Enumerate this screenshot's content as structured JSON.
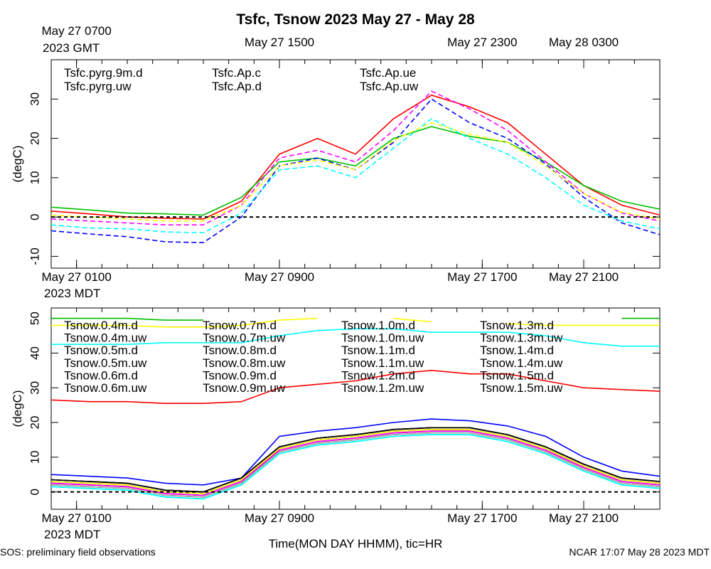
{
  "title": "Tsfc, Tsnow 2023 May 27 - May 28",
  "footer_left": "SOS: preliminary field observations",
  "footer_right": "NCAR 17:07 May 28 2023 MDT",
  "chart_data": [
    {
      "type": "line",
      "ylabel": "(degC)",
      "x": [
        0,
        1.5,
        3,
        4.5,
        6,
        7.5,
        9,
        10.5,
        12,
        13.5,
        15,
        16.5,
        18,
        19.5,
        21,
        22.5,
        24
      ],
      "xlim": [
        0,
        24
      ],
      "xticks": [
        {
          "value": 1,
          "label": "May 27 0100"
        },
        {
          "value": 9,
          "label": "May 27 0900"
        },
        {
          "value": 17,
          "label": "May 27 1700"
        },
        {
          "value": 21,
          "label": "May 27 2100"
        }
      ],
      "xtick_sublabel": "2023 MDT",
      "x2ticks": [
        {
          "value": 1,
          "label": "May 27 0700"
        },
        {
          "value": 9,
          "label": "May 27 1500"
        },
        {
          "value": 17,
          "label": "May 27 2300"
        },
        {
          "value": 21,
          "label": "May 28 0300"
        }
      ],
      "x2tick_sublabel": "2023 GMT",
      "xminorticks": [
        0,
        1,
        2,
        3,
        4,
        5,
        6,
        7,
        8,
        9,
        10,
        11,
        12,
        13,
        14,
        15,
        16,
        17,
        18,
        19,
        20,
        21,
        22,
        23,
        24
      ],
      "ylim": [
        -13,
        40
      ],
      "yticks": [
        -10,
        0,
        10,
        20,
        30
      ],
      "reference_line": 0,
      "series": [
        {
          "name": "Tsfc.pyrg.9m.d",
          "color": "#ff0000",
          "linestyle": "solid",
          "values": [
            1.5,
            0.8,
            0,
            -0.3,
            -0.5,
            4,
            16,
            20,
            16,
            25,
            31,
            28,
            24,
            16,
            8,
            3,
            0.5
          ]
        },
        {
          "name": "Tsfc.pyrg.uw",
          "color": "#00c000",
          "linestyle": "solid",
          "values": [
            2.5,
            1.8,
            1,
            0.8,
            0.5,
            5,
            14,
            15,
            13,
            20,
            23,
            20.5,
            19,
            14,
            8,
            4,
            2
          ]
        },
        {
          "name": "Tsfc.Ap.c",
          "color": "#0000ff",
          "linestyle": "dashed",
          "values": [
            -3.5,
            -4.3,
            -5,
            -6.3,
            -6.5,
            0,
            13,
            15,
            12,
            19,
            30,
            24,
            20,
            13.5,
            5,
            -1.5,
            -4.5
          ]
        },
        {
          "name": "Tsfc.Ap.d",
          "color": "#00ffff",
          "linestyle": "dashed",
          "values": [
            -2,
            -2.8,
            -3,
            -3.8,
            -4,
            1,
            12,
            13,
            10,
            17.5,
            25,
            20,
            16,
            10,
            3,
            -1,
            -3
          ]
        },
        {
          "name": "Tsfc.Ap.ue",
          "color": "#ff00ff",
          "linestyle": "dashed",
          "values": [
            -0.5,
            -1,
            -1.5,
            -2,
            -2,
            3,
            15,
            17,
            14,
            22,
            32,
            27.5,
            22,
            14,
            6,
            1,
            -1
          ]
        },
        {
          "name": "Tsfc.Ap.uw",
          "color": "#ffff00",
          "linestyle": "dashed",
          "values": [
            0.5,
            0,
            -0.5,
            -1,
            -1,
            3,
            13,
            14.5,
            12,
            19.5,
            24,
            21,
            19,
            13,
            6,
            1.2,
            -0.5
          ]
        }
      ]
    },
    {
      "type": "line",
      "ylabel": "(degC)",
      "xlabel": "Time(MON DAY HHMM), tic=HR",
      "x": [
        0,
        1.5,
        3,
        4.5,
        6,
        7.5,
        9,
        10.5,
        12,
        13.5,
        15,
        16.5,
        18,
        19.5,
        21,
        22.5,
        24
      ],
      "xlim": [
        0,
        24
      ],
      "xticks": [
        {
          "value": 1,
          "label": "May 27 0100"
        },
        {
          "value": 9,
          "label": "May 27 0900"
        },
        {
          "value": 17,
          "label": "May 27 1700"
        },
        {
          "value": 21,
          "label": "May 27 2100"
        }
      ],
      "xtick_sublabel": "2023 MDT",
      "xminorticks": [
        0,
        1,
        2,
        3,
        4,
        5,
        6,
        7,
        8,
        9,
        10,
        11,
        12,
        13,
        14,
        15,
        16,
        17,
        18,
        19,
        20,
        21,
        22,
        23,
        24
      ],
      "ylim": [
        -5,
        53
      ],
      "yticks": [
        0,
        10,
        20,
        30,
        40,
        50
      ],
      "reference_line": 0,
      "series": [
        {
          "name": "Tsnow.0.4m.d",
          "color": "#ff0000",
          "linestyle": "solid",
          "values": [
            26.5,
            26,
            26,
            25.5,
            25.5,
            26,
            30,
            31,
            32,
            34,
            35,
            34,
            34,
            32,
            30,
            29.5,
            29
          ]
        },
        {
          "name": "Tsnow.0.4m.uw",
          "color": "#00c000",
          "linestyle": "solid",
          "values": [
            50,
            50,
            50,
            49.5,
            49.5,
            null,
            null,
            null,
            null,
            null,
            null,
            null,
            null,
            null,
            null,
            50,
            50
          ]
        },
        {
          "name": "Tsnow.0.5m.d",
          "color": "#0000ff",
          "linestyle": "solid",
          "values": [
            5,
            4.5,
            4,
            2.5,
            2,
            4,
            16,
            17.5,
            18.5,
            20,
            21,
            20.5,
            19,
            16,
            10,
            6,
            4.5
          ]
        },
        {
          "name": "Tsnow.0.5m.uw",
          "color": "#00ffff",
          "linestyle": "solid",
          "values": [
            42.5,
            42.5,
            42.5,
            43,
            43,
            43,
            45,
            46.5,
            47,
            47,
            46,
            46,
            46,
            45,
            43,
            42,
            42
          ]
        },
        {
          "name": "Tsnow.0.6m.d",
          "color": "#ff00ff",
          "linestyle": "solid",
          "values": [
            2,
            1.5,
            1,
            -1,
            -1.5,
            2.5,
            11.5,
            14,
            15,
            16.5,
            17,
            17,
            15,
            11.5,
            6.5,
            2.5,
            1.5
          ]
        },
        {
          "name": "Tsnow.0.6m.uw",
          "color": "#ffff00",
          "linestyle": "solid",
          "values": [
            48,
            48,
            48,
            47.5,
            47.5,
            48,
            49.5,
            50,
            null,
            50,
            49,
            null,
            48.5,
            48,
            48,
            48,
            48
          ]
        },
        {
          "name": "Tsnow.0.7m.d",
          "color": "#b0b0b0",
          "linestyle": "solid",
          "values": [
            2.5,
            2,
            1.5,
            -0.5,
            -1,
            3,
            12,
            14.5,
            15.5,
            17,
            17.5,
            17.5,
            15.5,
            12,
            7,
            3,
            2
          ]
        },
        {
          "name": "Tsnow.0.7m.uw",
          "color": "#000000",
          "linestyle": "solid",
          "values": [
            3.5,
            3,
            2.5,
            0.5,
            0,
            4,
            13,
            15.5,
            16.5,
            18,
            18.5,
            18.5,
            16.5,
            13,
            8,
            4,
            3
          ]
        },
        {
          "name": "Tsnow.0.8m.d",
          "color": "#ff0000",
          "linestyle": "solid",
          "values": [
            3,
            2.5,
            2,
            0,
            -0.5,
            3.5,
            12.5,
            15,
            16,
            17.5,
            18,
            18,
            16,
            12.5,
            7.5,
            3.5,
            2.5
          ]
        },
        {
          "name": "Tsnow.0.8m.uw",
          "color": "#00c000",
          "linestyle": "solid",
          "values": [
            2.5,
            2,
            1.5,
            -0.5,
            -1,
            3,
            12,
            14.5,
            15.5,
            17,
            17.5,
            17.5,
            15.5,
            12,
            7,
            3,
            2
          ]
        },
        {
          "name": "Tsnow.0.9m.d",
          "color": "#0000ff",
          "linestyle": "solid",
          "values": [
            2,
            1.5,
            1,
            -1,
            -1.5,
            2.5,
            11.5,
            14,
            15,
            16.5,
            17,
            17,
            15,
            11.5,
            6.5,
            2.5,
            1.5
          ]
        },
        {
          "name": "Tsnow.0.9m.uw",
          "color": "#00ffff",
          "linestyle": "solid",
          "values": [
            1.5,
            1,
            0.5,
            -1.5,
            -2,
            2,
            11,
            13.5,
            14.5,
            16,
            16.5,
            16.5,
            14.5,
            11,
            6,
            2,
            1
          ]
        },
        {
          "name": "Tsnow.1.0m.d",
          "color": "#ff00ff",
          "linestyle": "solid",
          "values": [
            2.5,
            2,
            1.5,
            -0.5,
            -1,
            3,
            12,
            14.5,
            15.5,
            17,
            17.5,
            17.5,
            15.5,
            12,
            7,
            3,
            2
          ]
        },
        {
          "name": "Tsnow.1.0m.uw",
          "color": "#ffff00",
          "linestyle": "solid",
          "values": [
            3,
            2.5,
            2,
            0,
            -0.5,
            3.5,
            12.5,
            15,
            16,
            17.5,
            18,
            18,
            16,
            12.5,
            7.5,
            3.5,
            2.5
          ]
        },
        {
          "name": "Tsnow.1.1m.d",
          "color": "#b0b0b0",
          "linestyle": "solid",
          "values": [
            2,
            1.5,
            1,
            -1,
            -1.5,
            2.5,
            11.5,
            14,
            15,
            16.5,
            17,
            17,
            15,
            11.5,
            6.5,
            2.5,
            1.5
          ]
        },
        {
          "name": "Tsnow.1.1m.uw",
          "color": "#000000",
          "linestyle": "solid",
          "values": [
            3.5,
            3,
            2.5,
            0.5,
            0,
            4,
            13,
            15.5,
            16.5,
            18,
            18.5,
            18.5,
            16.5,
            13,
            8,
            4,
            3
          ]
        },
        {
          "name": "Tsnow.1.2m.d",
          "color": "#ff0000",
          "linestyle": "solid",
          "values": [
            2.5,
            2,
            1.5,
            -0.5,
            -1,
            3,
            12,
            14.5,
            15.5,
            17,
            17.5,
            17.5,
            15.5,
            12,
            7,
            3,
            2
          ]
        },
        {
          "name": "Tsnow.1.2m.uw",
          "color": "#00c000",
          "linestyle": "solid",
          "values": [
            2,
            1.5,
            1,
            -1,
            -1.5,
            2.5,
            11.5,
            14,
            15,
            16.5,
            17,
            17,
            15,
            11.5,
            6.5,
            2.5,
            1.5
          ]
        },
        {
          "name": "Tsnow.1.3m.d",
          "color": "#0000ff",
          "linestyle": "solid",
          "values": [
            3,
            2.5,
            2,
            0,
            -0.5,
            3.5,
            12.5,
            15,
            16,
            17.5,
            18,
            18,
            16,
            12.5,
            7.5,
            3.5,
            2.5
          ]
        },
        {
          "name": "Tsnow.1.3m.uw",
          "color": "#00ffff",
          "linestyle": "solid",
          "values": [
            1.5,
            1,
            0.5,
            -1.5,
            -2,
            2,
            11,
            13.5,
            14.5,
            16,
            16.5,
            16.5,
            14.5,
            11,
            6,
            2,
            1
          ]
        },
        {
          "name": "Tsnow.1.4m.d",
          "color": "#ff00ff",
          "linestyle": "solid",
          "values": [
            2.5,
            2,
            1.5,
            -0.5,
            -1,
            3,
            12,
            14.5,
            15.5,
            17,
            17.5,
            17.5,
            15.5,
            12,
            7,
            3,
            2
          ]
        },
        {
          "name": "Tsnow.1.4m.uw",
          "color": "#ffff00",
          "linestyle": "solid",
          "values": [
            3,
            2.5,
            2,
            0,
            -0.5,
            3.5,
            12.5,
            15,
            16,
            17.5,
            18,
            18,
            16,
            12.5,
            7.5,
            3.5,
            2.5
          ]
        },
        {
          "name": "Tsnow.1.5m.d",
          "color": "#b0b0b0",
          "linestyle": "solid",
          "values": [
            2,
            1.5,
            1,
            -1,
            -1.5,
            2.5,
            11.5,
            14,
            15,
            16.5,
            17,
            17,
            15,
            11.5,
            6.5,
            2.5,
            1.5
          ]
        },
        {
          "name": "Tsnow.1.5m.uw",
          "color": "#000000",
          "linestyle": "solid",
          "values": [
            3.5,
            3,
            2.5,
            0.5,
            0,
            4,
            13,
            15.5,
            16.5,
            18,
            18.5,
            18.5,
            16.5,
            13,
            8,
            4,
            3
          ]
        }
      ]
    }
  ]
}
